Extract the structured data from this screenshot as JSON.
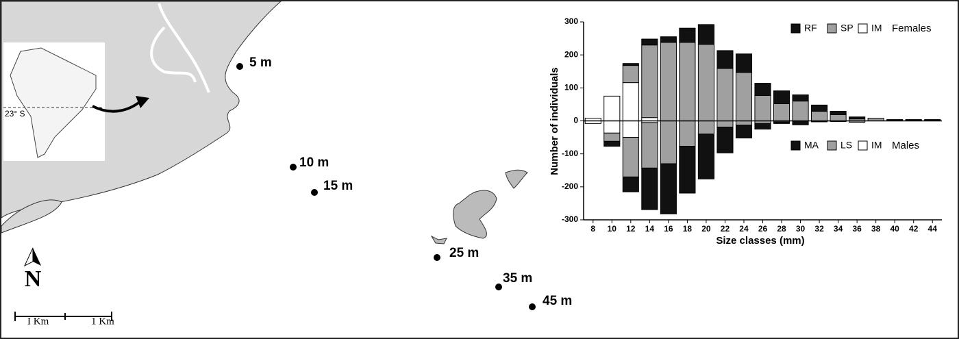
{
  "map": {
    "inset_latitude": "23° S",
    "north": "N",
    "scale_labels": [
      "I Km",
      "1 Km"
    ],
    "stations": [
      "5 m",
      "10 m",
      "15 m",
      "25 m",
      "35 m",
      "45 m"
    ]
  },
  "chart_data": {
    "type": "diverging-stacked-bar",
    "x_label": "Size classes (mm)",
    "y_label": "Number of individuals",
    "categories": [
      "8",
      "10",
      "12",
      "14",
      "16",
      "18",
      "20",
      "22",
      "24",
      "26",
      "28",
      "30",
      "32",
      "34",
      "36",
      "38",
      "40",
      "42",
      "44"
    ],
    "ylim": [
      -300,
      300
    ],
    "yticks": [
      -300,
      -200,
      -100,
      0,
      100,
      200,
      300
    ],
    "groups": [
      {
        "name": "Females",
        "series": [
          {
            "name": "RF",
            "color": "#111111",
            "values": [
              0,
              0,
              6,
              18,
              17,
              43,
              60,
              54,
              56,
              37,
              39,
              19,
              19,
              10,
              6,
              0,
              4,
              4,
              4
            ]
          },
          {
            "name": "SP",
            "color": "#a0a0a0",
            "values": [
              0,
              0,
              52,
              220,
              238,
              238,
              232,
              159,
              147,
              77,
              52,
              60,
              29,
              19,
              6,
              8,
              0,
              0,
              0
            ]
          },
          {
            "name": "IM",
            "color": "#ffffff",
            "values": [
              8,
              75,
              116,
              10,
              0,
              0,
              0,
              0,
              0,
              0,
              0,
              0,
              0,
              0,
              0,
              0,
              0,
              0,
              0
            ]
          }
        ]
      },
      {
        "name": "Males",
        "series": [
          {
            "name": "MA",
            "color": "#111111",
            "values": [
              0,
              -15,
              -45,
              -126,
              -152,
              -142,
              -136,
              -78,
              -39,
              -17,
              -5,
              -12,
              -3,
              -2,
              0,
              0,
              0,
              0,
              0
            ]
          },
          {
            "name": "LS",
            "color": "#a0a0a0",
            "values": [
              0,
              -25,
              -120,
              -138,
              -130,
              -77,
              -40,
              -19,
              -13,
              -8,
              -3,
              0,
              0,
              0,
              -4,
              0,
              0,
              0,
              0
            ]
          },
          {
            "name": "IM",
            "color": "#ffffff",
            "values": [
              -8,
              -37,
              -50,
              -5,
              0,
              0,
              0,
              0,
              0,
              0,
              0,
              0,
              0,
              0,
              0,
              0,
              0,
              0,
              0
            ]
          }
        ]
      }
    ]
  }
}
